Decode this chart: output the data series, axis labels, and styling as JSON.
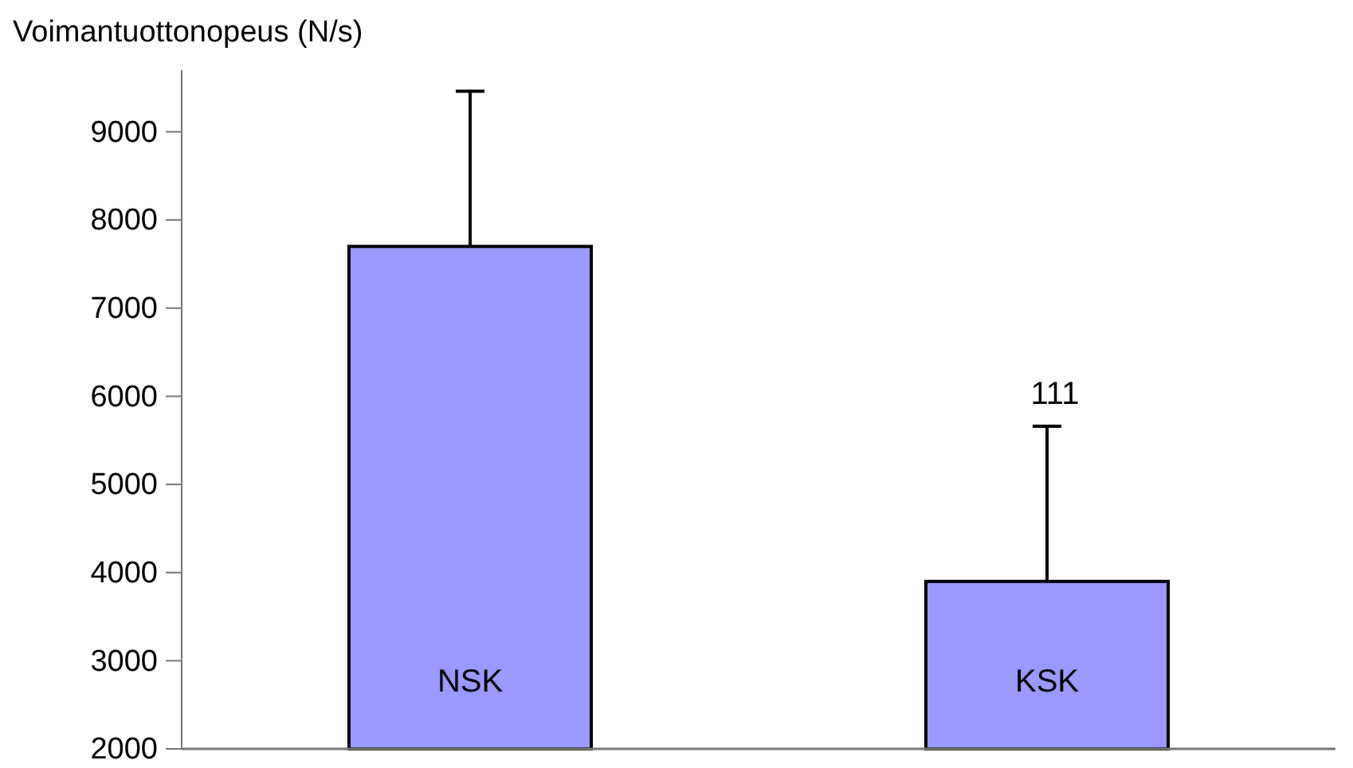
{
  "chart_data": {
    "type": "bar",
    "ylabel": "Voimantuottonopeus (N/s)",
    "categories": [
      "NSK",
      "KSK"
    ],
    "values": [
      7700,
      3900
    ],
    "errors": [
      [
        7700,
        9460
      ],
      [
        3900,
        5660
      ]
    ],
    "color": "#9999ff",
    "ylim": [
      2000,
      9700
    ],
    "yticks": [
      2000,
      3000,
      4000,
      5000,
      6000,
      7000,
      8000,
      9000
    ],
    "grid": false,
    "annotations": [
      {
        "text": "111",
        "x": "KSK",
        "y": 5660
      }
    ]
  }
}
